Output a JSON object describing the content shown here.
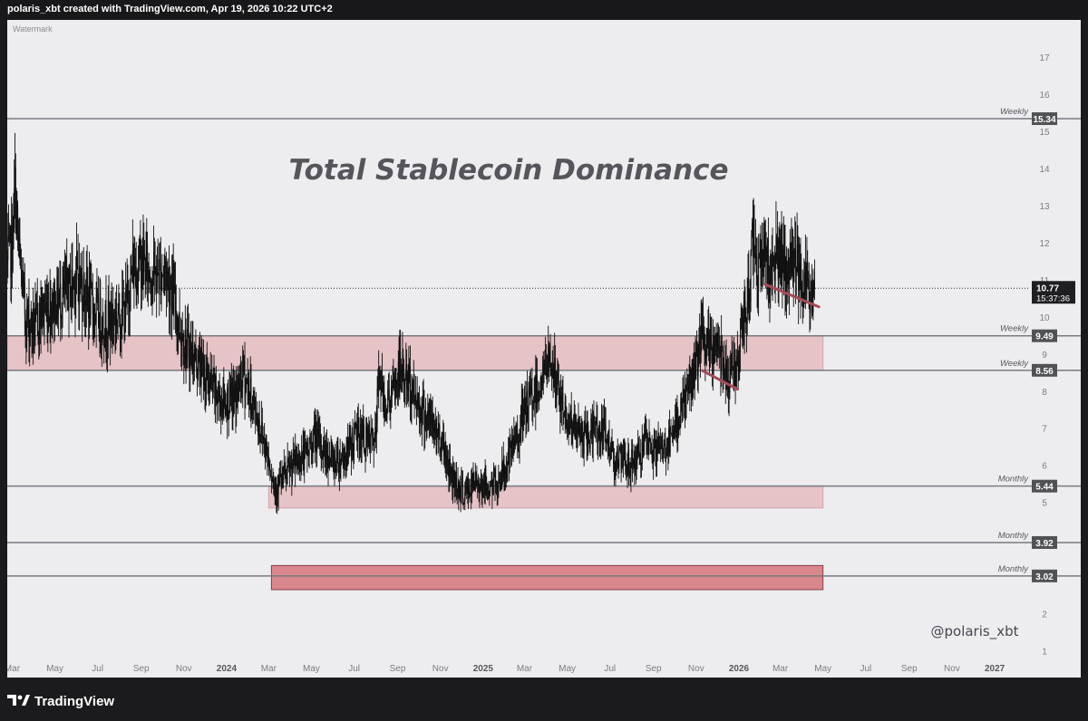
{
  "header": {
    "title": "polaris_xbt created with TradingView.com, Apr 19, 2026 10:22 UTC+2"
  },
  "footer": {
    "brand": "TradingView"
  },
  "colors": {
    "background": "#ededf0",
    "candles": "#111111",
    "zone_light": "#e5c3c6",
    "zone_dark": "#d9868d",
    "trendline": "#a34b55",
    "level_line": "#777a80",
    "label_bg": "#505256",
    "title_text": "#55565c"
  },
  "chart_data": {
    "type": "line",
    "title": "Total Stablecoin Dominance",
    "watermark": "Watermark",
    "author": "@polaris_xbt",
    "timeframe_note": "daily candles",
    "x_range": [
      "2023-02-22",
      "2027-02-10"
    ],
    "ylim": [
      0.6,
      18.0
    ],
    "y_ticks": [
      "1",
      "2",
      "3",
      "4",
      "5",
      "6",
      "7",
      "8",
      "9",
      "10",
      "11",
      "12",
      "13",
      "14",
      "15",
      "16",
      "17"
    ],
    "x_ticks": [
      {
        "label": "Mar",
        "date": "2023-03-01",
        "bold": false
      },
      {
        "label": "May",
        "date": "2023-05-01",
        "bold": false
      },
      {
        "label": "Jul",
        "date": "2023-07-01",
        "bold": false
      },
      {
        "label": "Sep",
        "date": "2023-09-01",
        "bold": false
      },
      {
        "label": "Nov",
        "date": "2023-11-01",
        "bold": false
      },
      {
        "label": "2024",
        "date": "2024-01-01",
        "bold": true
      },
      {
        "label": "Mar",
        "date": "2024-03-01",
        "bold": false
      },
      {
        "label": "May",
        "date": "2024-05-01",
        "bold": false
      },
      {
        "label": "Jul",
        "date": "2024-07-01",
        "bold": false
      },
      {
        "label": "Sep",
        "date": "2024-09-01",
        "bold": false
      },
      {
        "label": "Nov",
        "date": "2024-11-01",
        "bold": false
      },
      {
        "label": "2025",
        "date": "2025-01-01",
        "bold": true
      },
      {
        "label": "Mar",
        "date": "2025-03-01",
        "bold": false
      },
      {
        "label": "May",
        "date": "2025-05-01",
        "bold": false
      },
      {
        "label": "Jul",
        "date": "2025-07-01",
        "bold": false
      },
      {
        "label": "Sep",
        "date": "2025-09-01",
        "bold": false
      },
      {
        "label": "Nov",
        "date": "2025-11-01",
        "bold": false
      },
      {
        "label": "2026",
        "date": "2026-01-01",
        "bold": true
      },
      {
        "label": "Mar",
        "date": "2026-03-01",
        "bold": false
      },
      {
        "label": "May",
        "date": "2026-05-01",
        "bold": false
      },
      {
        "label": "Jul",
        "date": "2026-07-01",
        "bold": false
      },
      {
        "label": "Sep",
        "date": "2026-09-01",
        "bold": false
      },
      {
        "label": "Nov",
        "date": "2026-11-01",
        "bold": false
      },
      {
        "label": "2027",
        "date": "2027-01-01",
        "bold": true
      }
    ],
    "price_path": [
      {
        "date": "2023-02-22",
        "value": 11.4
      },
      {
        "date": "2023-03-01",
        "value": 11.9
      },
      {
        "date": "2023-03-05",
        "value": 13.5
      },
      {
        "date": "2023-03-10",
        "value": 11.8
      },
      {
        "date": "2023-03-20",
        "value": 10.0
      },
      {
        "date": "2023-04-01",
        "value": 9.7
      },
      {
        "date": "2023-04-15",
        "value": 10.2
      },
      {
        "date": "2023-05-01",
        "value": 10.4
      },
      {
        "date": "2023-05-15",
        "value": 10.6
      },
      {
        "date": "2023-06-01",
        "value": 11.1
      },
      {
        "date": "2023-06-15",
        "value": 10.6
      },
      {
        "date": "2023-06-25",
        "value": 10.2
      },
      {
        "date": "2023-07-10",
        "value": 9.8
      },
      {
        "date": "2023-07-25",
        "value": 10.0
      },
      {
        "date": "2023-08-10",
        "value": 10.2
      },
      {
        "date": "2023-08-20",
        "value": 11.3
      },
      {
        "date": "2023-09-01",
        "value": 11.5
      },
      {
        "date": "2023-09-20",
        "value": 11.1
      },
      {
        "date": "2023-10-05",
        "value": 11.3
      },
      {
        "date": "2023-10-15",
        "value": 10.7
      },
      {
        "date": "2023-10-25",
        "value": 9.8
      },
      {
        "date": "2023-11-05",
        "value": 9.2
      },
      {
        "date": "2023-11-20",
        "value": 8.8
      },
      {
        "date": "2023-12-05",
        "value": 8.3
      },
      {
        "date": "2023-12-20",
        "value": 7.8
      },
      {
        "date": "2024-01-05",
        "value": 7.7
      },
      {
        "date": "2024-01-15",
        "value": 7.9
      },
      {
        "date": "2024-01-25",
        "value": 8.5
      },
      {
        "date": "2024-02-05",
        "value": 7.8
      },
      {
        "date": "2024-02-20",
        "value": 6.9
      },
      {
        "date": "2024-03-01",
        "value": 6.2
      },
      {
        "date": "2024-03-10",
        "value": 5.4
      },
      {
        "date": "2024-03-20",
        "value": 5.6
      },
      {
        "date": "2024-04-01",
        "value": 5.9
      },
      {
        "date": "2024-04-15",
        "value": 6.2
      },
      {
        "date": "2024-04-25",
        "value": 6.3
      },
      {
        "date": "2024-05-05",
        "value": 6.8
      },
      {
        "date": "2024-05-15",
        "value": 6.5
      },
      {
        "date": "2024-06-01",
        "value": 6.1
      },
      {
        "date": "2024-06-20",
        "value": 6.3
      },
      {
        "date": "2024-07-05",
        "value": 6.9
      },
      {
        "date": "2024-07-20",
        "value": 6.6
      },
      {
        "date": "2024-08-01",
        "value": 6.7
      },
      {
        "date": "2024-08-05",
        "value": 8.7
      },
      {
        "date": "2024-08-12",
        "value": 7.7
      },
      {
        "date": "2024-08-25",
        "value": 7.9
      },
      {
        "date": "2024-09-05",
        "value": 8.6
      },
      {
        "date": "2024-09-20",
        "value": 8.1
      },
      {
        "date": "2024-10-05",
        "value": 7.5
      },
      {
        "date": "2024-10-20",
        "value": 7.1
      },
      {
        "date": "2024-11-05",
        "value": 6.6
      },
      {
        "date": "2024-11-15",
        "value": 5.8
      },
      {
        "date": "2024-11-25",
        "value": 5.5
      },
      {
        "date": "2024-12-05",
        "value": 5.2
      },
      {
        "date": "2024-12-15",
        "value": 5.4
      },
      {
        "date": "2024-12-25",
        "value": 5.6
      },
      {
        "date": "2025-01-05",
        "value": 5.4
      },
      {
        "date": "2025-01-20",
        "value": 5.5
      },
      {
        "date": "2025-02-01",
        "value": 5.9
      },
      {
        "date": "2025-02-10",
        "value": 6.3
      },
      {
        "date": "2025-02-25",
        "value": 7.2
      },
      {
        "date": "2025-03-10",
        "value": 7.8
      },
      {
        "date": "2025-03-20",
        "value": 8.1
      },
      {
        "date": "2025-03-28",
        "value": 8.4
      },
      {
        "date": "2025-04-07",
        "value": 8.9
      },
      {
        "date": "2025-04-15",
        "value": 8.2
      },
      {
        "date": "2025-04-25",
        "value": 7.5
      },
      {
        "date": "2025-05-10",
        "value": 7.0
      },
      {
        "date": "2025-05-25",
        "value": 6.7
      },
      {
        "date": "2025-06-10",
        "value": 7.0
      },
      {
        "date": "2025-06-25",
        "value": 6.8
      },
      {
        "date": "2025-07-05",
        "value": 6.3
      },
      {
        "date": "2025-07-20",
        "value": 6.0
      },
      {
        "date": "2025-08-05",
        "value": 6.1
      },
      {
        "date": "2025-08-20",
        "value": 6.5
      },
      {
        "date": "2025-09-05",
        "value": 6.4
      },
      {
        "date": "2025-09-20",
        "value": 6.5
      },
      {
        "date": "2025-10-01",
        "value": 6.8
      },
      {
        "date": "2025-10-10",
        "value": 7.6
      },
      {
        "date": "2025-10-20",
        "value": 8.0
      },
      {
        "date": "2025-10-30",
        "value": 8.6
      },
      {
        "date": "2025-11-10",
        "value": 9.4
      },
      {
        "date": "2025-11-20",
        "value": 9.0
      },
      {
        "date": "2025-12-01",
        "value": 9.3
      },
      {
        "date": "2025-12-10",
        "value": 8.9
      },
      {
        "date": "2025-12-18",
        "value": 8.4
      },
      {
        "date": "2025-12-28",
        "value": 8.7
      },
      {
        "date": "2026-01-05",
        "value": 9.4
      },
      {
        "date": "2026-01-12",
        "value": 10.3
      },
      {
        "date": "2026-01-18",
        "value": 11.2
      },
      {
        "date": "2026-01-22",
        "value": 12.6
      },
      {
        "date": "2026-01-28",
        "value": 11.3
      },
      {
        "date": "2026-02-05",
        "value": 11.8
      },
      {
        "date": "2026-02-15",
        "value": 11.2
      },
      {
        "date": "2026-02-22",
        "value": 11.8
      },
      {
        "date": "2026-03-01",
        "value": 11.4
      },
      {
        "date": "2026-03-10",
        "value": 11.0
      },
      {
        "date": "2026-03-20",
        "value": 11.7
      },
      {
        "date": "2026-03-30",
        "value": 11.3
      },
      {
        "date": "2026-04-08",
        "value": 10.9
      },
      {
        "date": "2026-04-15",
        "value": 10.5
      },
      {
        "date": "2026-04-19",
        "value": 10.77
      }
    ],
    "current_price": {
      "value": 10.77,
      "label": "10.77",
      "countdown": "15:37:36"
    },
    "levels": [
      {
        "value": 15.34,
        "label": "15.34",
        "tag": "Weekly"
      },
      {
        "value": 9.49,
        "label": "9.49",
        "tag": "Weekly"
      },
      {
        "value": 8.56,
        "label": "8.56",
        "tag": "Weekly"
      },
      {
        "value": 5.44,
        "label": "5.44",
        "tag": "Monthly"
      },
      {
        "value": 3.92,
        "label": "3.92",
        "tag": "Monthly"
      },
      {
        "value": 3.02,
        "label": "3.02",
        "tag": "Monthly"
      }
    ],
    "zones": [
      {
        "name": "weekly-zone",
        "x0": "2023-02-22",
        "x1": "2026-05-01",
        "y0": 8.56,
        "y1": 9.49,
        "style": "light"
      },
      {
        "name": "monthly-support-zone",
        "x0": "2024-03-01",
        "x1": "2026-05-01",
        "y0": 4.85,
        "y1": 5.44,
        "style": "light"
      },
      {
        "name": "monthly-deep-zone",
        "x0": "2024-03-05",
        "x1": "2026-05-01",
        "y0": 2.65,
        "y1": 3.3,
        "style": "dark"
      }
    ],
    "trendlines": [
      {
        "name": "trendline-2026",
        "x0": "2026-02-08",
        "y0": 10.87,
        "x1": "2026-04-25",
        "y1": 10.27
      },
      {
        "name": "trendline-2025",
        "x0": "2025-11-10",
        "y0": 8.55,
        "x1": "2025-12-30",
        "y1": 8.05
      }
    ]
  }
}
